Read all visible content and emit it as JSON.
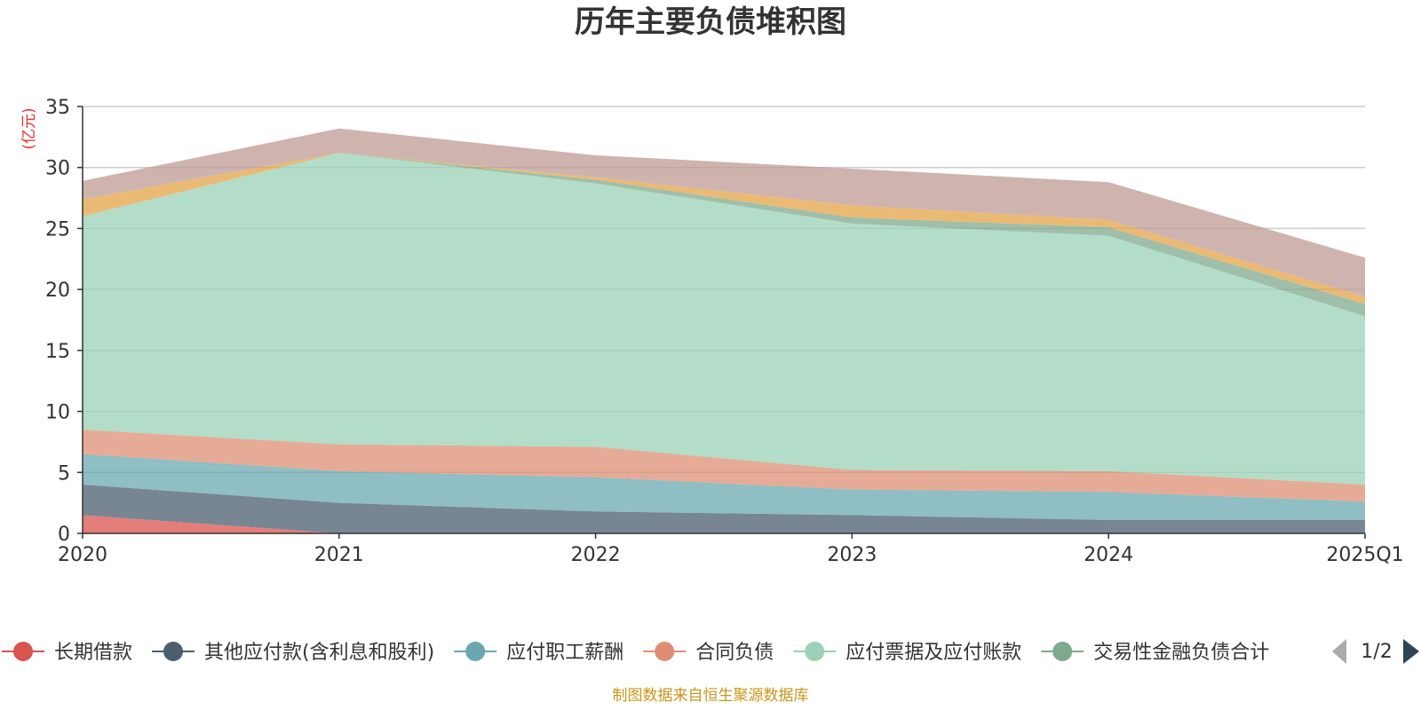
{
  "chart_data": {
    "type": "area",
    "stacked": true,
    "title": "历年主要负债堆积图",
    "unit_label": "(亿元)",
    "categories": [
      "2020",
      "2021",
      "2022",
      "2023",
      "2024",
      "2025Q1"
    ],
    "ylim": [
      0,
      35
    ],
    "yticks": [
      0,
      5,
      10,
      15,
      20,
      25,
      30,
      35
    ],
    "grid": true,
    "series": [
      {
        "name": "长期借款",
        "color": "#d9534f",
        "values": [
          1.5,
          0.0,
          0.0,
          0.0,
          0.0,
          0.0
        ]
      },
      {
        "name": "其他应付款(含利息和股利)",
        "color": "#4a5e6e",
        "values": [
          2.5,
          2.5,
          1.8,
          1.5,
          1.1,
          1.1
        ]
      },
      {
        "name": "应付职工薪酬",
        "color": "#6aa8b0",
        "values": [
          2.5,
          2.6,
          2.8,
          2.1,
          2.3,
          1.5
        ]
      },
      {
        "name": "合同负债",
        "color": "#de8f73",
        "values": [
          2.0,
          2.2,
          2.5,
          1.6,
          1.7,
          1.4
        ]
      },
      {
        "name": "应付票据及应付账款",
        "color": "#99d2b6",
        "values": [
          17.5,
          23.9,
          21.6,
          20.2,
          19.3,
          13.8
        ]
      },
      {
        "name": "交易性金融负债合计",
        "color": "#7fa98e",
        "values": [
          0.0,
          0.0,
          0.3,
          0.5,
          0.7,
          1.0
        ]
      },
      {
        "name": "",
        "color": "#e3a347",
        "values": [
          1.4,
          0.0,
          0.2,
          1.0,
          0.6,
          0.6
        ]
      },
      {
        "name": "",
        "color": "#bf9a93",
        "values": [
          1.5,
          2.0,
          1.8,
          3.0,
          3.1,
          3.2
        ]
      }
    ]
  },
  "legend": {
    "items": [
      "长期借款",
      "其他应付款(含利息和股利)",
      "应付职工薪酬",
      "合同负债",
      "应付票据及应付账款",
      "交易性金融负债合计"
    ],
    "page": "1/2"
  },
  "source": "制图数据来自恒生聚源数据库"
}
